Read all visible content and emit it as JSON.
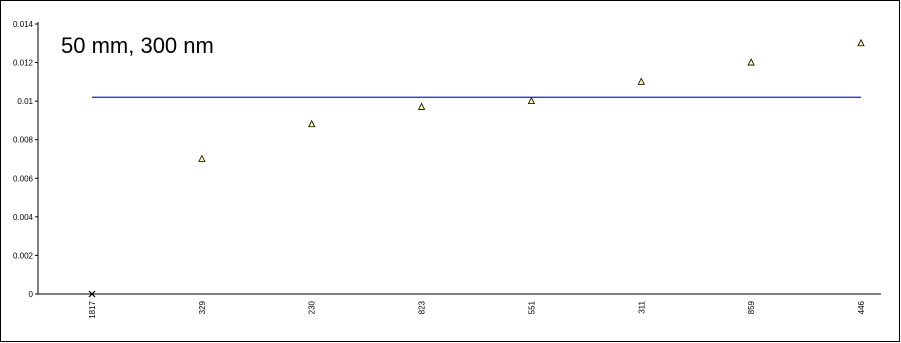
{
  "chart_data": {
    "type": "scatter",
    "title": "50 mm, 300 nm",
    "xlabel": "",
    "ylabel": "",
    "categories": [
      "1817",
      "329",
      "230",
      "823",
      "551",
      "311",
      "859",
      "446"
    ],
    "ylim": [
      0,
      0.014
    ],
    "y_ticks": [
      "0",
      "0.002",
      "0.004",
      "0.006",
      "0.008",
      "0.01",
      "0.012",
      "0.014"
    ],
    "y_tick_values": [
      0,
      0.002,
      0.004,
      0.006,
      0.008,
      0.01,
      0.012,
      0.014
    ],
    "grid": false,
    "legend": "none",
    "series": [
      {
        "marker": "triangle",
        "color": "#ffff99",
        "values": [
          null,
          0.007,
          0.0088,
          0.0097,
          0.01,
          0.011,
          0.012,
          0.013
        ]
      },
      {
        "marker": "x",
        "color": "#000000",
        "values": [
          0,
          null,
          null,
          null,
          null,
          null,
          null,
          null
        ]
      },
      {
        "type": "line",
        "color": "#2020c0",
        "values": [
          0.0102,
          0.0102,
          0.0102,
          0.0102,
          0.0102,
          0.0102,
          0.0102,
          0.0102
        ]
      }
    ]
  }
}
